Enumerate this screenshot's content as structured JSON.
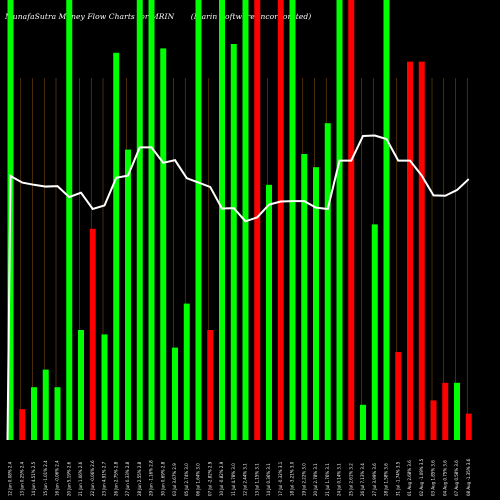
{
  "chart_data": {
    "type": "bar",
    "title": "MunafaSutra Money Flow  Charts for MRIN",
    "subtitle": "(Marin Software Incorporated)",
    "ylim": [
      0,
      100
    ],
    "grid": true,
    "colors": {
      "up": "#00ff00",
      "down": "#ff0000",
      "line": "#ffffff",
      "grid": "#7a4a10",
      "background": "#000000"
    },
    "categories": [
      "12 Jun 0.08% 2.4",
      "13 Jun 0.25% 2.4",
      "14 Jun 4.51% 2.5",
      "15 Jun -1.01% 2.4",
      "16 Jun -0.06% 2.4",
      "20 Jun 5.19% 2.6",
      "21 Jun 1.06% 2.6",
      "22 Jun -0.06% 2.6",
      "23 Jun 4.91% 2.7",
      "26 Jun 2.75% 2.8",
      "27 Jun 0.33% 2.8",
      "28 Jun 2.55% 2.8",
      "29 Jun -1.16% 2.8",
      "30 Jun 0.69% 2.8",
      "03 Jul 3.67% 2.9",
      "05 Jul 2.74% 3.0",
      "06 Jul 1.64% 3.0",
      "07 Jul -2.82% 2.9",
      "10 Jul -0.82% 2.9",
      "11 Jul 4.78% 3.0",
      "12 Jul 2.44% 3.1",
      "13 Jul 1.15% 3.1",
      "14 Jul 0.36% 3.1",
      "17 Jul -0.32% 3.1",
      "18 Jul -3.21% 3.0",
      "19 Jul 2.22% 3.0",
      "20 Jul 2.78% 3.1",
      "21 Jul 1.76% 3.1",
      "24 Jul 0.14% 3.1",
      "25 Jul 2.61% 3.2",
      "26 Jul 7.13% 3.4",
      "27 Jul 3.99% 3.6",
      "28 Jul 1.58% 3.6",
      "31 Jul -1.74% 3.5",
      "01 Aug 2.68% 3.6",
      "02 Aug -1.09% 3.5",
      "03 Aug 1.85% 3.6",
      "04 Aug 0.75% 3.6",
      "07 Aug 0.58% 3.6",
      "08 Aug -1.35% 3.6"
    ],
    "bar_colors": [
      "green",
      "red",
      "green",
      "green",
      "green",
      "green",
      "green",
      "red",
      "green",
      "green",
      "green",
      "green",
      "green",
      "green",
      "green",
      "green",
      "green",
      "red",
      "green",
      "green",
      "green",
      "red",
      "green",
      "red",
      "green",
      "green",
      "green",
      "green",
      "green",
      "red",
      "green",
      "green",
      "green",
      "red",
      "red",
      "red",
      "red",
      "red",
      "green",
      "red"
    ],
    "values": [
      100,
      7,
      12,
      16,
      12,
      100,
      25,
      48,
      24,
      88,
      66,
      100,
      100,
      89,
      21,
      31,
      100,
      25,
      100,
      90,
      100,
      100,
      58,
      100,
      100,
      65,
      62,
      72,
      100,
      100,
      8,
      49,
      100,
      20,
      86,
      86,
      9,
      13,
      13,
      6
    ],
    "line": [
      60,
      58.5,
      58,
      57.6,
      57.7,
      55.2,
      56.2,
      52.5,
      53.3,
      59.6,
      60.1,
      66.5,
      66.5,
      63,
      63.6,
      59.5,
      58.5,
      57.5,
      52.6,
      52.7,
      49.7,
      50.6,
      53.5,
      54.2,
      54.3,
      54.3,
      52.8,
      52.5,
      63.5,
      63.5,
      69.1,
      69.2,
      68.4,
      63.5,
      63.5,
      60.1,
      55.6,
      55.5,
      56.8,
      59.3
    ],
    "line_start": 0,
    "line_top_cap": [
      79,
      91
    ],
    "line_top_cap_value": 97
  }
}
